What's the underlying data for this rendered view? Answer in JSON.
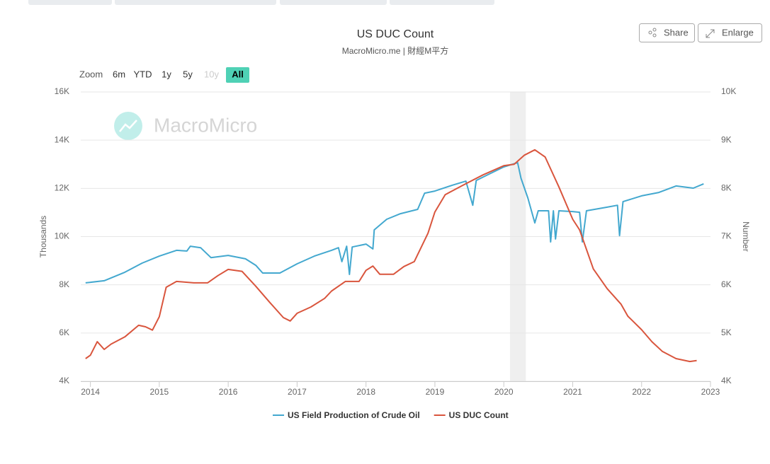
{
  "chart_data": {
    "type": "line",
    "title": "US DUC Count",
    "subtitle": "MacroMicro.me | 財經M平方",
    "watermark": "MacroMicro",
    "range_selector": {
      "label": "Zoom",
      "buttons": [
        "6m",
        "YTD",
        "1y",
        "5y",
        "10y",
        "All"
      ],
      "selected_index": 5,
      "disabled_index": 4
    },
    "actions": [
      "Share",
      "Enlarge"
    ],
    "y_label": "Thousands",
    "y2_label": "Number",
    "xlim": [
      2013.86,
      2023.0
    ],
    "xticks": [
      2014,
      2015,
      2016,
      2017,
      2018,
      2019,
      2020,
      2021,
      2022,
      2023
    ],
    "ylim": [
      4000,
      16000
    ],
    "yticks": [
      {
        "value": 4000,
        "label": "4K"
      },
      {
        "value": 6000,
        "label": "6K"
      },
      {
        "value": 8000,
        "label": "8K"
      },
      {
        "value": 10000,
        "label": "10K"
      },
      {
        "value": 12000,
        "label": "12K"
      },
      {
        "value": 14000,
        "label": "14K"
      },
      {
        "value": 16000,
        "label": "16K"
      }
    ],
    "y2lim": [
      4000,
      10000
    ],
    "y2ticks": [
      {
        "value": 4000,
        "label": "4K"
      },
      {
        "value": 5000,
        "label": "5K"
      },
      {
        "value": 6000,
        "label": "6K"
      },
      {
        "value": 7000,
        "label": "7K"
      },
      {
        "value": 8000,
        "label": "8K"
      },
      {
        "value": 9000,
        "label": "9K"
      },
      {
        "value": 10000,
        "label": "10K"
      }
    ],
    "grid": true,
    "plot_bands": [
      {
        "from": 2020.09,
        "to": 2020.32,
        "color": "#efefef"
      }
    ],
    "legend": "bottom",
    "series": [
      {
        "name": "US Field Production of Crude Oil",
        "color": "#43a8cf",
        "axis": "y",
        "x": [
          2013.93,
          2014.2,
          2014.5,
          2014.75,
          2015.0,
          2015.25,
          2015.4,
          2015.45,
          2015.6,
          2015.75,
          2016.0,
          2016.25,
          2016.4,
          2016.5,
          2016.75,
          2017.0,
          2017.25,
          2017.5,
          2017.6,
          2017.65,
          2017.72,
          2017.76,
          2017.8,
          2018.0,
          2018.1,
          2018.12,
          2018.3,
          2018.5,
          2018.75,
          2018.85,
          2019.0,
          2019.25,
          2019.45,
          2019.55,
          2019.6,
          2019.75,
          2020.0,
          2020.2,
          2020.25,
          2020.35,
          2020.45,
          2020.5,
          2020.65,
          2020.68,
          2020.72,
          2020.75,
          2020.8,
          2021.0,
          2021.1,
          2021.14,
          2021.2,
          2021.5,
          2021.65,
          2021.68,
          2021.73,
          2022.0,
          2022.25,
          2022.5,
          2022.75,
          2022.9
        ],
        "values": [
          8080,
          8170,
          8520,
          8900,
          9190,
          9430,
          9400,
          9600,
          9540,
          9130,
          9220,
          9080,
          8810,
          8490,
          8490,
          8870,
          9190,
          9430,
          9540,
          8960,
          9600,
          8430,
          9570,
          9690,
          9490,
          10280,
          10720,
          10950,
          11130,
          11800,
          11890,
          12130,
          12300,
          11300,
          12330,
          12540,
          12890,
          13070,
          12420,
          11600,
          10570,
          11070,
          11070,
          9780,
          11070,
          9900,
          11070,
          11040,
          11010,
          9780,
          11070,
          11220,
          11300,
          10040,
          11450,
          11690,
          11830,
          12100,
          12010,
          12190
        ]
      },
      {
        "name": "US DUC Count",
        "color": "#d9553d",
        "axis": "y2",
        "x": [
          2013.93,
          2014.0,
          2014.1,
          2014.2,
          2014.3,
          2014.5,
          2014.7,
          2014.8,
          2014.9,
          2015.0,
          2015.1,
          2015.25,
          2015.5,
          2015.7,
          2015.85,
          2016.0,
          2016.2,
          2016.4,
          2016.6,
          2016.8,
          2016.9,
          2017.0,
          2017.2,
          2017.4,
          2017.5,
          2017.7,
          2017.9,
          2018.0,
          2018.1,
          2018.2,
          2018.4,
          2018.55,
          2018.7,
          2018.9,
          2019.0,
          2019.15,
          2019.4,
          2019.7,
          2020.0,
          2020.15,
          2020.3,
          2020.45,
          2020.6,
          2020.8,
          2021.0,
          2021.1,
          2021.3,
          2021.5,
          2021.7,
          2021.8,
          2022.0,
          2022.15,
          2022.3,
          2022.5,
          2022.7,
          2022.8
        ],
        "values": [
          4470,
          4540,
          4820,
          4660,
          4770,
          4920,
          5160,
          5130,
          5060,
          5340,
          5950,
          6070,
          6040,
          6040,
          6190,
          6320,
          6280,
          5970,
          5640,
          5320,
          5250,
          5410,
          5540,
          5720,
          5870,
          6070,
          6070,
          6300,
          6390,
          6220,
          6220,
          6380,
          6480,
          7070,
          7510,
          7870,
          8060,
          8280,
          8470,
          8500,
          8690,
          8800,
          8650,
          8030,
          7360,
          7140,
          6330,
          5920,
          5600,
          5350,
          5070,
          4820,
          4620,
          4470,
          4410,
          4430
        ]
      }
    ]
  }
}
